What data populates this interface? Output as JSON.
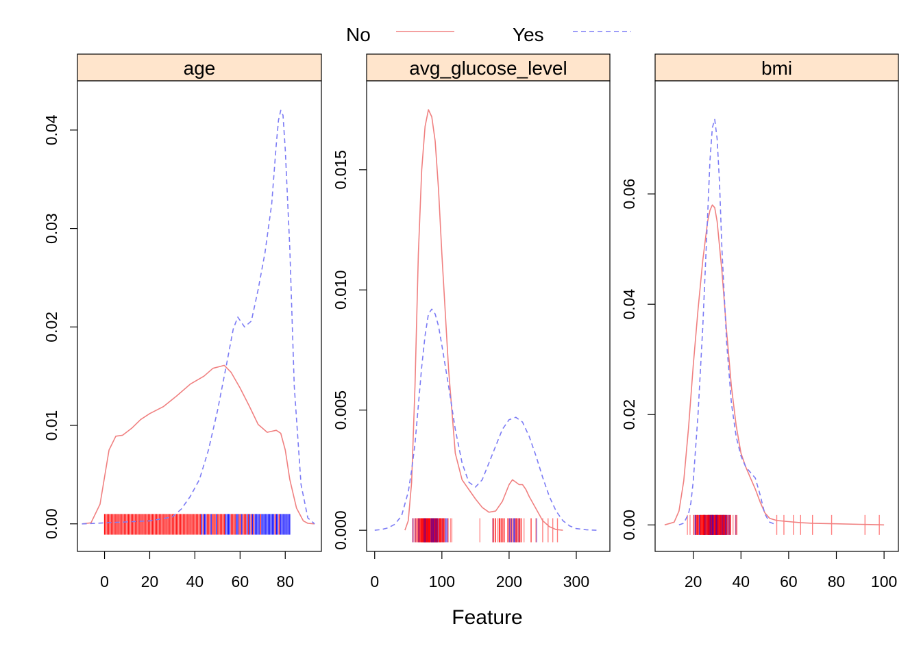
{
  "colors": {
    "no": "#f08080",
    "yes": "#7b7bf5",
    "strip_bg": "#ffe5cc",
    "rug_no": "#ff0000",
    "rug_yes": "#0000ff"
  },
  "legend": {
    "position": "top",
    "entries": [
      {
        "label": "No",
        "style": "solid"
      },
      {
        "label": "Yes",
        "style": "dashed"
      }
    ]
  },
  "xlabel": "Feature",
  "chart_data": [
    {
      "type": "line",
      "title": "age",
      "xlim": [
        -12,
        96
      ],
      "ylim": [
        -0.0028,
        0.045
      ],
      "xticks": [
        0,
        20,
        40,
        60,
        80
      ],
      "yticks": [
        0.0,
        0.01,
        0.02,
        0.03,
        0.04
      ],
      "ytick_labels": [
        "0.00",
        "0.01",
        "0.02",
        "0.03",
        "0.04"
      ],
      "rug_range": [
        0,
        82
      ],
      "rug_y": [
        -0.0011,
        0.001
      ],
      "series": [
        {
          "name": "No",
          "x": [
            -10,
            -6,
            -2,
            2,
            5,
            8,
            12,
            16,
            20,
            26,
            32,
            38,
            44,
            48,
            53,
            56,
            60,
            64,
            68,
            72,
            76,
            78,
            80,
            82,
            85,
            88,
            90,
            93
          ],
          "values": [
            0,
            0.0001,
            0.002,
            0.0075,
            0.0089,
            0.009,
            0.0097,
            0.0106,
            0.0112,
            0.0119,
            0.013,
            0.0142,
            0.015,
            0.0158,
            0.0161,
            0.0154,
            0.0138,
            0.012,
            0.0101,
            0.0093,
            0.0095,
            0.0092,
            0.0075,
            0.0045,
            0.0016,
            0.0003,
            5e-05,
            0
          ]
        },
        {
          "name": "Yes",
          "x": [
            -10,
            -4,
            0,
            10,
            20,
            30,
            34,
            38,
            42,
            46,
            50,
            54,
            57,
            59,
            62,
            65,
            68,
            71,
            74,
            76,
            77,
            78,
            79,
            80,
            82,
            84,
            87,
            90,
            93
          ],
          "values": [
            0,
            5e-05,
            0.0001,
            0.0002,
            0.0003,
            0.0007,
            0.0015,
            0.0028,
            0.0045,
            0.0075,
            0.0115,
            0.0162,
            0.0198,
            0.021,
            0.02,
            0.0206,
            0.0238,
            0.0275,
            0.0325,
            0.0385,
            0.041,
            0.042,
            0.0415,
            0.038,
            0.028,
            0.014,
            0.004,
            0.0006,
            0
          ]
        }
      ]
    },
    {
      "type": "line",
      "title": "avg_glucose_level",
      "xlim": [
        -12,
        350
      ],
      "ylim": [
        -0.00088,
        0.0187
      ],
      "xticks": [
        0,
        100,
        200,
        300
      ],
      "yticks": [
        0.0,
        0.005,
        0.01,
        0.015
      ],
      "ytick_labels": [
        "0.000",
        "0.005",
        "0.010",
        "0.015"
      ],
      "rug_range": [
        55,
        272
      ],
      "rug_y": [
        -0.0005,
        0.0005
      ],
      "series": [
        {
          "name": "No",
          "x": [
            45,
            50,
            55,
            60,
            65,
            70,
            75,
            80,
            85,
            90,
            95,
            100,
            110,
            120,
            130,
            140,
            150,
            160,
            170,
            180,
            190,
            200,
            205,
            210,
            215,
            220,
            225,
            230,
            240,
            250,
            260,
            270,
            280
          ],
          "values": [
            0,
            0.0004,
            0.002,
            0.006,
            0.0115,
            0.015,
            0.0168,
            0.0175,
            0.0172,
            0.0162,
            0.0142,
            0.0115,
            0.0067,
            0.0032,
            0.0021,
            0.0017,
            0.0013,
            0.00095,
            0.00075,
            0.0008,
            0.0012,
            0.0019,
            0.0021,
            0.002,
            0.0019,
            0.0019,
            0.0017,
            0.0014,
            0.0009,
            0.0004,
            0.00015,
            3e-05,
            0
          ]
        },
        {
          "name": "Yes",
          "x": [
            0,
            10,
            20,
            30,
            40,
            50,
            55,
            60,
            65,
            70,
            75,
            80,
            85,
            90,
            95,
            100,
            110,
            120,
            130,
            140,
            150,
            160,
            170,
            180,
            190,
            200,
            210,
            220,
            230,
            240,
            250,
            260,
            270,
            280,
            290,
            300,
            315,
            330
          ],
          "values": [
            0,
            3e-05,
            0.0001,
            0.00025,
            0.0006,
            0.0016,
            0.0025,
            0.0036,
            0.0052,
            0.0068,
            0.0081,
            0.009,
            0.0092,
            0.009,
            0.0085,
            0.0077,
            0.006,
            0.0042,
            0.0028,
            0.002,
            0.0018,
            0.0021,
            0.0028,
            0.0035,
            0.0042,
            0.0046,
            0.0047,
            0.0045,
            0.0039,
            0.0031,
            0.0022,
            0.0014,
            0.0008,
            0.0004,
            0.00018,
            7e-05,
            2e-05,
            0
          ]
        }
      ]
    },
    {
      "type": "line",
      "title": "bmi",
      "xlim": [
        4,
        106
      ],
      "ylim": [
        -0.0048,
        0.0805
      ],
      "xticks": [
        20,
        40,
        60,
        80,
        100
      ],
      "yticks": [
        0.0,
        0.02,
        0.04,
        0.06
      ],
      "ytick_labels": [
        "0.00",
        "0.02",
        "0.04",
        "0.06"
      ],
      "rug_range": [
        12,
        98
      ],
      "rug_y": [
        -0.0018,
        0.0018
      ],
      "series": [
        {
          "name": "No",
          "x": [
            8,
            12,
            14,
            16,
            18,
            20,
            22,
            24,
            26,
            27,
            28,
            29,
            30,
            32,
            34,
            36,
            38,
            40,
            42,
            44,
            46,
            48,
            50,
            52,
            55,
            60,
            65,
            70,
            80,
            90,
            100
          ],
          "values": [
            0,
            0.0005,
            0.0025,
            0.008,
            0.0175,
            0.029,
            0.039,
            0.048,
            0.055,
            0.057,
            0.058,
            0.0575,
            0.055,
            0.046,
            0.035,
            0.025,
            0.018,
            0.013,
            0.0105,
            0.0085,
            0.0065,
            0.0042,
            0.0022,
            0.0012,
            0.0008,
            0.0006,
            0.0004,
            0.0003,
            0.0002,
            0.0001,
            0
          ]
        },
        {
          "name": "Yes",
          "x": [
            14,
            16,
            18,
            19,
            20,
            22,
            24,
            26,
            27,
            28,
            29,
            30,
            31,
            32,
            34,
            36,
            38,
            40,
            42,
            44,
            46,
            48,
            50,
            52,
            55
          ],
          "values": [
            0,
            0.0003,
            0.002,
            0.004,
            0.008,
            0.02,
            0.036,
            0.056,
            0.066,
            0.072,
            0.0735,
            0.07,
            0.062,
            0.05,
            0.033,
            0.022,
            0.016,
            0.0125,
            0.0105,
            0.0095,
            0.0085,
            0.0055,
            0.002,
            0.0005,
            0
          ]
        }
      ]
    }
  ]
}
